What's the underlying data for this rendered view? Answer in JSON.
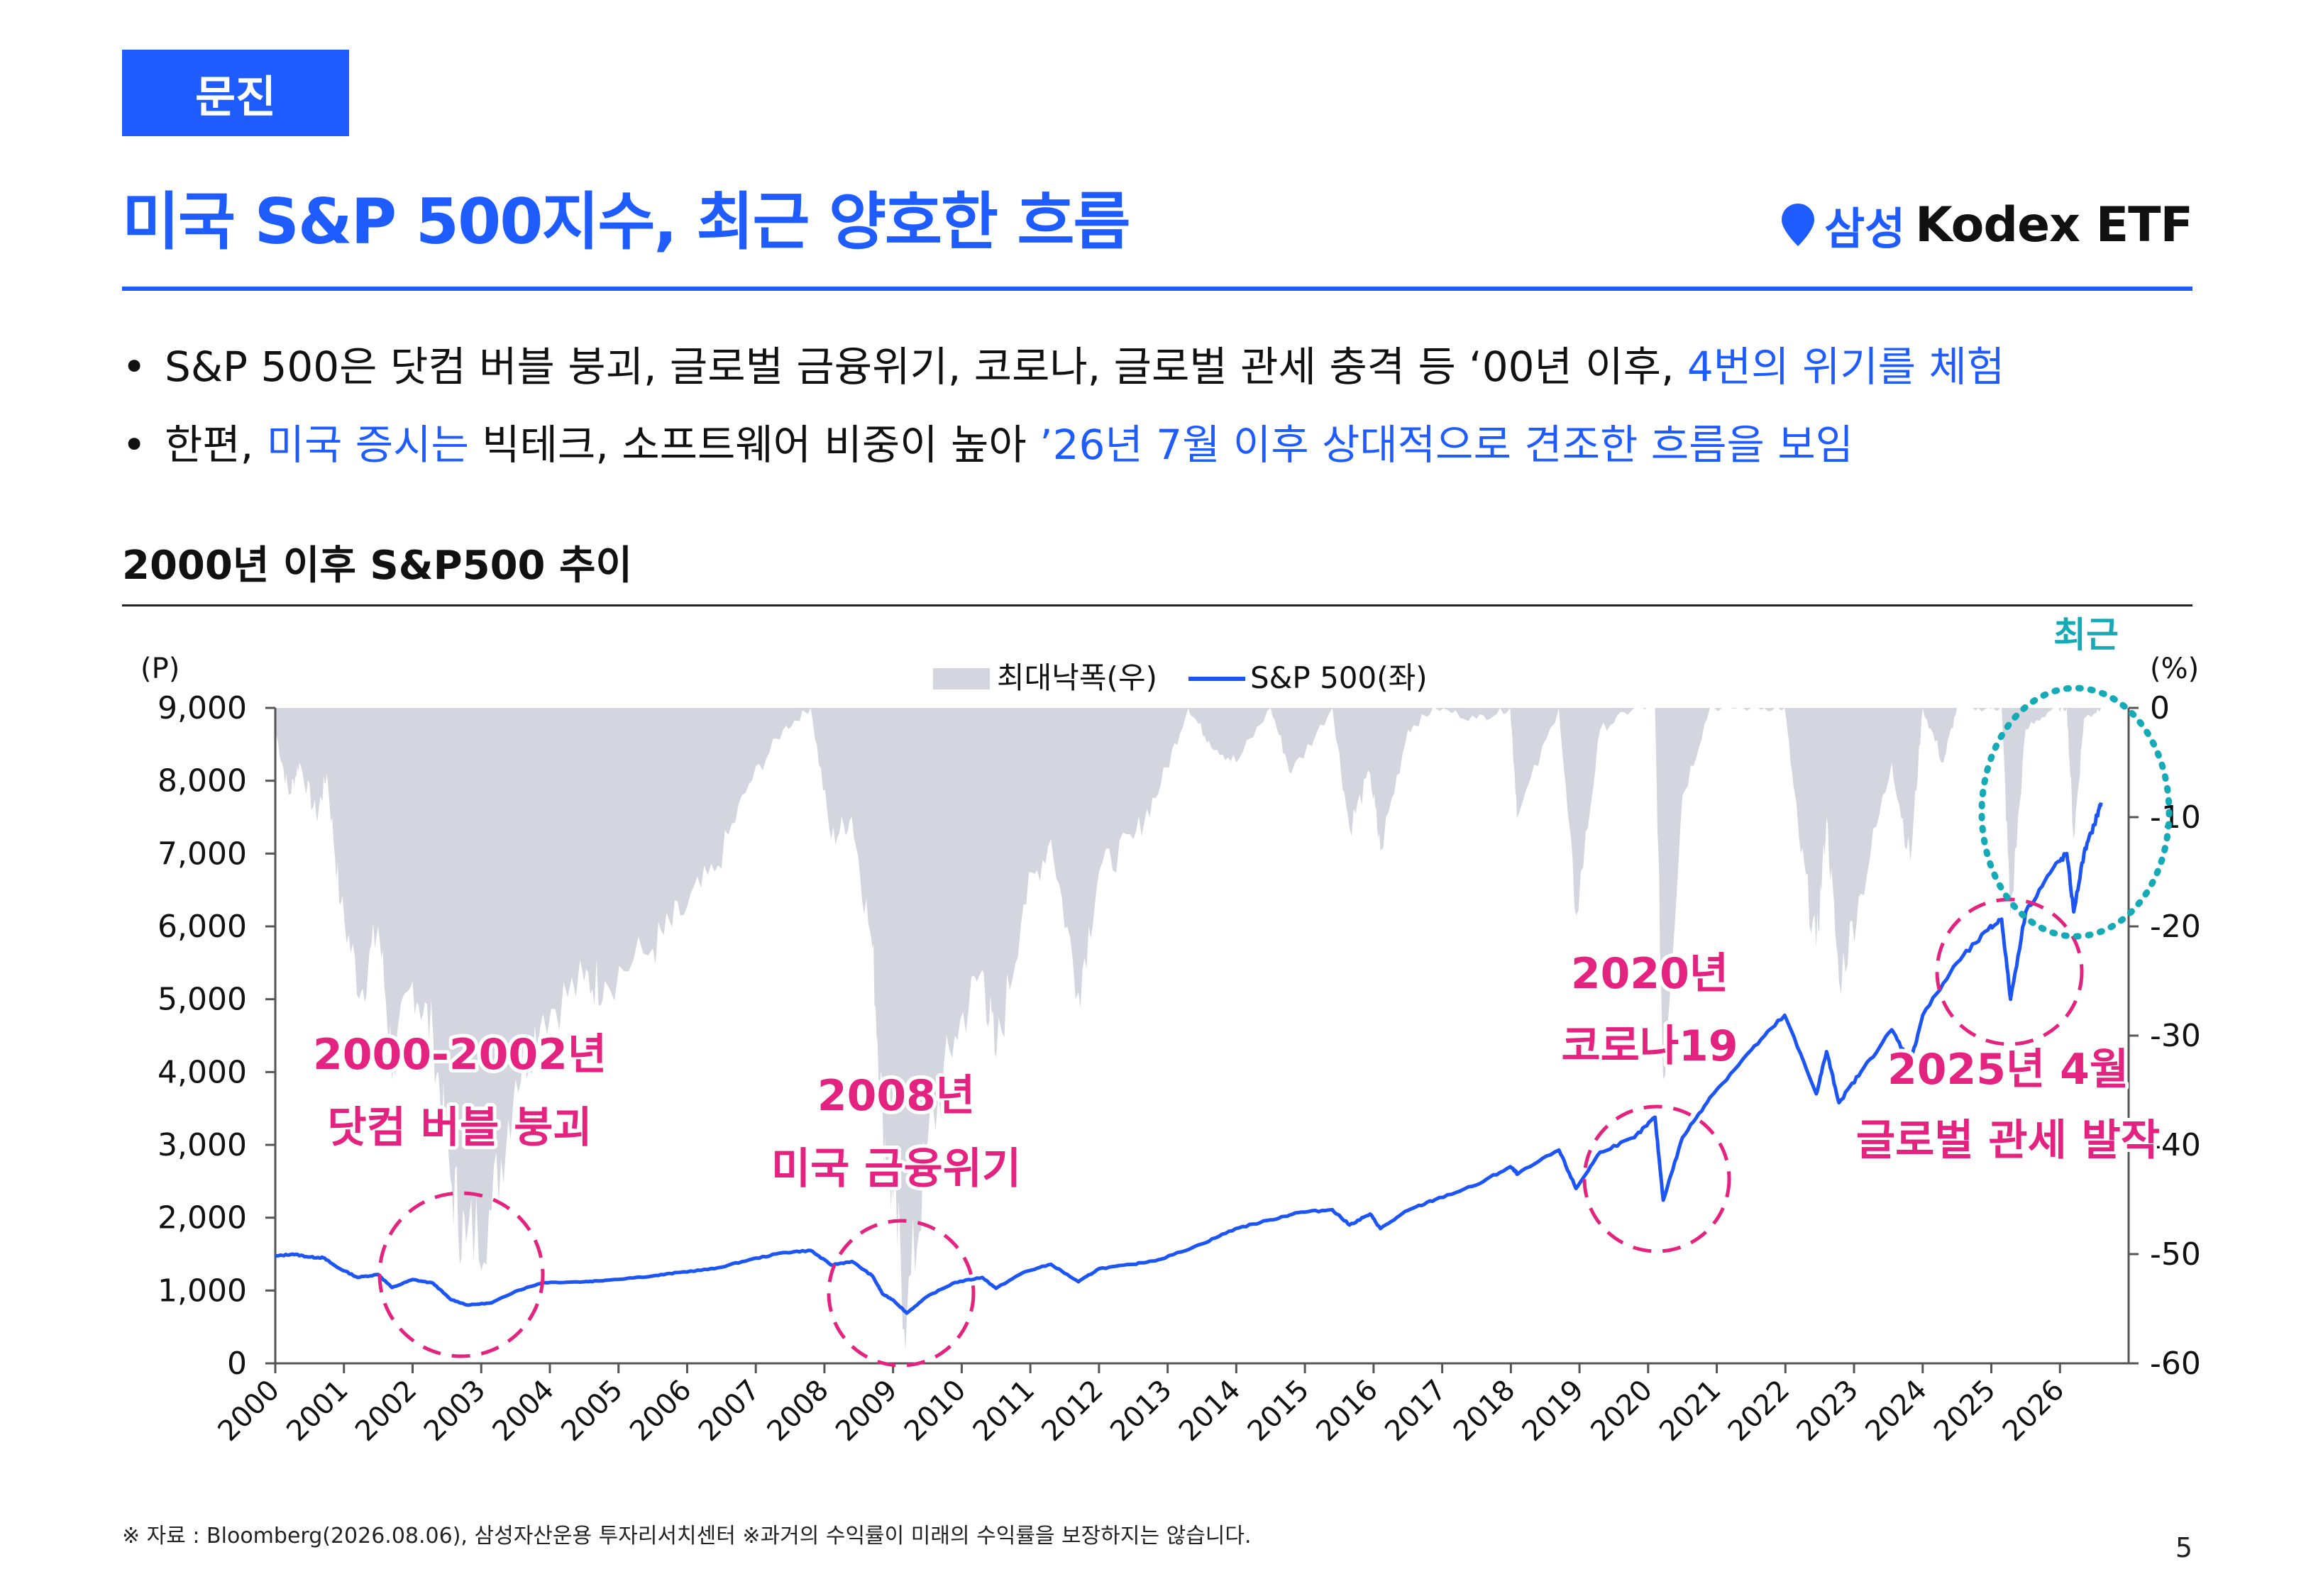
{
  "header": {
    "tag": "문진",
    "title": "미국 S&P 500지수, 최근 양호한 흐름",
    "brand_ko": "삼성",
    "brand_en": "Kodex ETF"
  },
  "bullets": [
    {
      "parts": [
        {
          "text": "S&P 500은 닷컴 버블 붕괴, 글로벌 금융위기, 코로나, 글로벌 관세 충격 등 ‘00년 이후, ",
          "hl": false
        },
        {
          "text": "4번의 위기를 체험",
          "hl": true
        }
      ]
    },
    {
      "parts": [
        {
          "text": "한편, ",
          "hl": false
        },
        {
          "text": "미국 증시는",
          "hl": true
        },
        {
          "text": " 빅테크, 소프트웨어 비중이 높아 ",
          "hl": false
        },
        {
          "text": "’26년 7월 이후 상대적으로 견조한 흐름을 보임",
          "hl": true
        }
      ]
    }
  ],
  "section_title": "2000년 이후 S&P500 추이",
  "chart_data": {
    "type": "line",
    "left_unit": "(P)",
    "right_unit": "(%)",
    "yleft_lim": [
      0,
      9000
    ],
    "yleft_ticks": [
      "0",
      "1,000",
      "2,000",
      "3,000",
      "4,000",
      "5,000",
      "6,000",
      "7,000",
      "8,000",
      "9,000"
    ],
    "yright_lim": [
      -60,
      0
    ],
    "yright_ticks": [
      "-60",
      "-50",
      "-40",
      "-30",
      "-20",
      "-10",
      "0"
    ],
    "x_range": [
      2000,
      2027
    ],
    "x_ticks": [
      "2000",
      "2001",
      "2002",
      "2003",
      "2004",
      "2005",
      "2006",
      "2007",
      "2008",
      "2009",
      "2010",
      "2011",
      "2012",
      "2013",
      "2014",
      "2015",
      "2016",
      "2017",
      "2018",
      "2019",
      "2020",
      "2021",
      "2022",
      "2023",
      "2024",
      "2025",
      "2026"
    ],
    "series": [
      {
        "name": "S&P 500(좌)",
        "axis": "left",
        "color": "#1d55f5",
        "points": [
          [
            2000.0,
            1470
          ],
          [
            2000.25,
            1500
          ],
          [
            2000.5,
            1460
          ],
          [
            2000.7,
            1450
          ],
          [
            2000.9,
            1320
          ],
          [
            2001.2,
            1180
          ],
          [
            2001.5,
            1220
          ],
          [
            2001.7,
            1040
          ],
          [
            2002.0,
            1150
          ],
          [
            2002.3,
            1100
          ],
          [
            2002.55,
            880
          ],
          [
            2002.8,
            800
          ],
          [
            2003.15,
            830
          ],
          [
            2003.5,
            990
          ],
          [
            2003.9,
            1110
          ],
          [
            2004.5,
            1120
          ],
          [
            2004.8,
            1140
          ],
          [
            2005.5,
            1200
          ],
          [
            2005.9,
            1250
          ],
          [
            2006.4,
            1300
          ],
          [
            2006.9,
            1420
          ],
          [
            2007.4,
            1520
          ],
          [
            2007.8,
            1550
          ],
          [
            2008.1,
            1350
          ],
          [
            2008.4,
            1400
          ],
          [
            2008.7,
            1200
          ],
          [
            2008.85,
            950
          ],
          [
            2009.0,
            870
          ],
          [
            2009.2,
            690
          ],
          [
            2009.5,
            920
          ],
          [
            2009.9,
            1110
          ],
          [
            2010.3,
            1180
          ],
          [
            2010.5,
            1030
          ],
          [
            2010.9,
            1250
          ],
          [
            2011.3,
            1360
          ],
          [
            2011.7,
            1120
          ],
          [
            2012.0,
            1300
          ],
          [
            2012.5,
            1360
          ],
          [
            2012.9,
            1430
          ],
          [
            2013.5,
            1640
          ],
          [
            2013.99,
            1850
          ],
          [
            2014.5,
            1970
          ],
          [
            2014.9,
            2070
          ],
          [
            2015.4,
            2110
          ],
          [
            2015.65,
            1900
          ],
          [
            2015.95,
            2050
          ],
          [
            2016.1,
            1850
          ],
          [
            2016.5,
            2100
          ],
          [
            2016.9,
            2250
          ],
          [
            2017.5,
            2450
          ],
          [
            2017.99,
            2700
          ],
          [
            2018.1,
            2600
          ],
          [
            2018.7,
            2930
          ],
          [
            2018.95,
            2400
          ],
          [
            2019.3,
            2900
          ],
          [
            2019.8,
            3100
          ],
          [
            2020.1,
            3380
          ],
          [
            2020.22,
            2240
          ],
          [
            2020.5,
            3100
          ],
          [
            2020.9,
            3650
          ],
          [
            2021.5,
            4300
          ],
          [
            2021.99,
            4780
          ],
          [
            2022.45,
            3700
          ],
          [
            2022.6,
            4280
          ],
          [
            2022.78,
            3580
          ],
          [
            2023.1,
            4000
          ],
          [
            2023.55,
            4580
          ],
          [
            2023.82,
            4120
          ],
          [
            2024.0,
            4780
          ],
          [
            2024.5,
            5500
          ],
          [
            2024.95,
            5950
          ],
          [
            2025.15,
            6100
          ],
          [
            2025.28,
            5000
          ],
          [
            2025.5,
            6200
          ],
          [
            2025.9,
            6800
          ],
          [
            2026.1,
            7000
          ],
          [
            2026.2,
            6200
          ],
          [
            2026.35,
            7000
          ],
          [
            2026.5,
            7400
          ],
          [
            2026.6,
            7700
          ]
        ]
      },
      {
        "name": "최대낙폭(우)",
        "axis": "right",
        "color": "#d3d6de",
        "points": [
          [
            2000.0,
            -2
          ],
          [
            2000.2,
            -8
          ],
          [
            2000.35,
            -5
          ],
          [
            2000.6,
            -10
          ],
          [
            2000.75,
            -6
          ],
          [
            2000.95,
            -18
          ],
          [
            2001.25,
            -26
          ],
          [
            2001.5,
            -20
          ],
          [
            2001.72,
            -33
          ],
          [
            2002.0,
            -25
          ],
          [
            2002.3,
            -30
          ],
          [
            2002.55,
            -43
          ],
          [
            2002.78,
            -49
          ],
          [
            2003.15,
            -46
          ],
          [
            2003.5,
            -34
          ],
          [
            2003.9,
            -28
          ],
          [
            2004.5,
            -25
          ],
          [
            2004.8,
            -25
          ],
          [
            2005.5,
            -22
          ],
          [
            2005.9,
            -19
          ],
          [
            2006.4,
            -15
          ],
          [
            2006.9,
            -7
          ],
          [
            2007.4,
            -2
          ],
          [
            2007.8,
            0
          ],
          [
            2008.1,
            -12
          ],
          [
            2008.4,
            -10
          ],
          [
            2008.7,
            -22
          ],
          [
            2008.85,
            -38
          ],
          [
            2009.0,
            -45
          ],
          [
            2009.2,
            -56
          ],
          [
            2009.5,
            -40
          ],
          [
            2009.9,
            -30
          ],
          [
            2010.3,
            -24
          ],
          [
            2010.5,
            -32
          ],
          [
            2010.9,
            -18
          ],
          [
            2011.3,
            -12
          ],
          [
            2011.7,
            -26
          ],
          [
            2012.0,
            -15
          ],
          [
            2012.5,
            -12
          ],
          [
            2012.9,
            -7
          ],
          [
            2013.3,
            0
          ],
          [
            2013.6,
            -3
          ],
          [
            2014.0,
            -5
          ],
          [
            2014.5,
            0
          ],
          [
            2014.8,
            -6
          ],
          [
            2015.4,
            0
          ],
          [
            2015.65,
            -11
          ],
          [
            2015.95,
            -6
          ],
          [
            2016.1,
            -13
          ],
          [
            2016.5,
            -2
          ],
          [
            2016.9,
            0
          ],
          [
            2017.5,
            -1
          ],
          [
            2017.99,
            0
          ],
          [
            2018.1,
            -10
          ],
          [
            2018.7,
            0
          ],
          [
            2018.95,
            -19
          ],
          [
            2019.3,
            -2
          ],
          [
            2019.8,
            0
          ],
          [
            2020.1,
            0
          ],
          [
            2020.22,
            -34
          ],
          [
            2020.5,
            -8
          ],
          [
            2020.9,
            0
          ],
          [
            2021.5,
            0
          ],
          [
            2021.99,
            0
          ],
          [
            2022.2,
            -12
          ],
          [
            2022.45,
            -22
          ],
          [
            2022.6,
            -10
          ],
          [
            2022.78,
            -25
          ],
          [
            2023.1,
            -17
          ],
          [
            2023.55,
            -5
          ],
          [
            2023.82,
            -14
          ],
          [
            2024.0,
            0
          ],
          [
            2024.3,
            -5
          ],
          [
            2024.5,
            0
          ],
          [
            2024.95,
            0
          ],
          [
            2025.15,
            0
          ],
          [
            2025.28,
            -19
          ],
          [
            2025.5,
            -2
          ],
          [
            2025.9,
            0
          ],
          [
            2026.1,
            0
          ],
          [
            2026.2,
            -12
          ],
          [
            2026.35,
            -1
          ],
          [
            2026.6,
            0
          ]
        ]
      }
    ],
    "annotations": [
      {
        "text": "2000-2002년\n닷컴 버블 붕괴",
        "color": "#e3237f"
      },
      {
        "text": "2008년\n미국 금융위기",
        "color": "#e3237f"
      },
      {
        "text": "2020년\n코로나19",
        "color": "#e3237f"
      },
      {
        "text": "2025년 4월\n글로벌 관세 발작",
        "color": "#e3237f"
      },
      {
        "text": "최근",
        "color": "#16aab7"
      }
    ]
  },
  "footnote": "※ 자료 : Bloomberg(2026.08.06), 삼성자산운용 투자리서치센터 ※과거의 수익률이 미래의 수익률을 보장하지는 않습니다.",
  "page_number": "5"
}
